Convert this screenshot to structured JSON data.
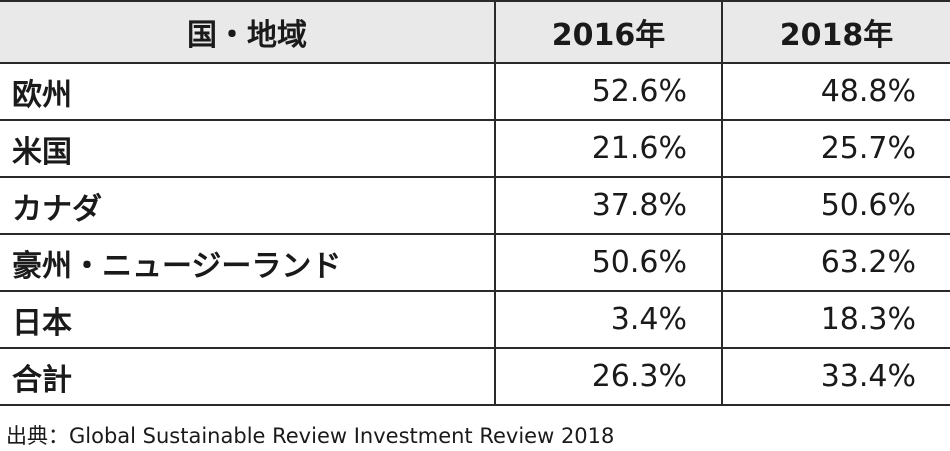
{
  "table": {
    "headers": [
      "国・地域",
      "2016年",
      "2018年"
    ],
    "rows": [
      {
        "region": "欧州",
        "y2016": "52.6%",
        "y2018": "48.8%"
      },
      {
        "region": "米国",
        "y2016": "21.6%",
        "y2018": "25.7%"
      },
      {
        "region": "カナダ",
        "y2016": "37.8%",
        "y2018": "50.6%"
      },
      {
        "region": "豪州・ニュージーランド",
        "y2016": "50.6%",
        "y2018": "63.2%"
      },
      {
        "region": "日本",
        "y2016": "3.4%",
        "y2018": "18.3%"
      },
      {
        "region": "合計",
        "y2016": "26.3%",
        "y2018": "33.4%"
      }
    ]
  },
  "source": "出典：Global Sustainable Review Investment Review 2018"
}
